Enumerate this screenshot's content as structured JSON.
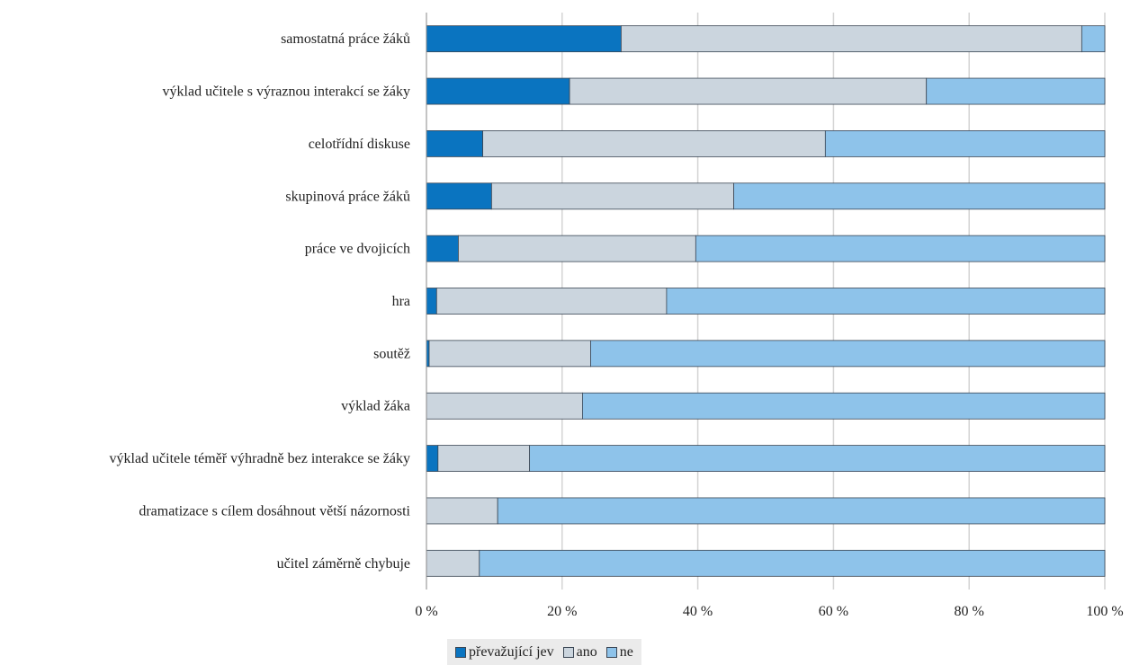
{
  "chart_data": {
    "type": "bar",
    "orientation": "horizontal",
    "stacked": "percent",
    "categories": [
      "samostatná práce žáků",
      "výklad učitele s výraznou interakcí se žáky",
      "celotřídní diskuse",
      "skupinová práce žáků",
      "práce ve dvojicích",
      "hra",
      "soutěž",
      "výklad žáka",
      "výklad učitele téměř výhradně bez interakce se žáky",
      "dramatizace s cílem dosáhnout větší názornosti",
      "učitel záměrně chybuje"
    ],
    "series": [
      {
        "name": "převažující jev",
        "color": "#0a74c0",
        "values": [
          28.7,
          21.1,
          8.3,
          9.6,
          4.7,
          1.5,
          0.4,
          0,
          1.7,
          0,
          0
        ]
      },
      {
        "name": "ano",
        "color": "#cbd5de",
        "values": [
          67.9,
          52.6,
          50.5,
          35.7,
          35.0,
          33.9,
          23.8,
          23.0,
          13.5,
          10.5,
          7.8
        ]
      },
      {
        "name": "ne",
        "color": "#8ec3ea",
        "values": [
          3.4,
          26.3,
          41.2,
          54.7,
          60.3,
          64.6,
          75.8,
          77.0,
          84.8,
          89.5,
          92.2
        ]
      }
    ],
    "x_ticks": [
      "0 %",
      "20 %",
      "40 %",
      "60 %",
      "80 %",
      "100 %"
    ],
    "xlim": [
      0,
      100
    ],
    "grid": true,
    "legend_position": "bottom"
  }
}
